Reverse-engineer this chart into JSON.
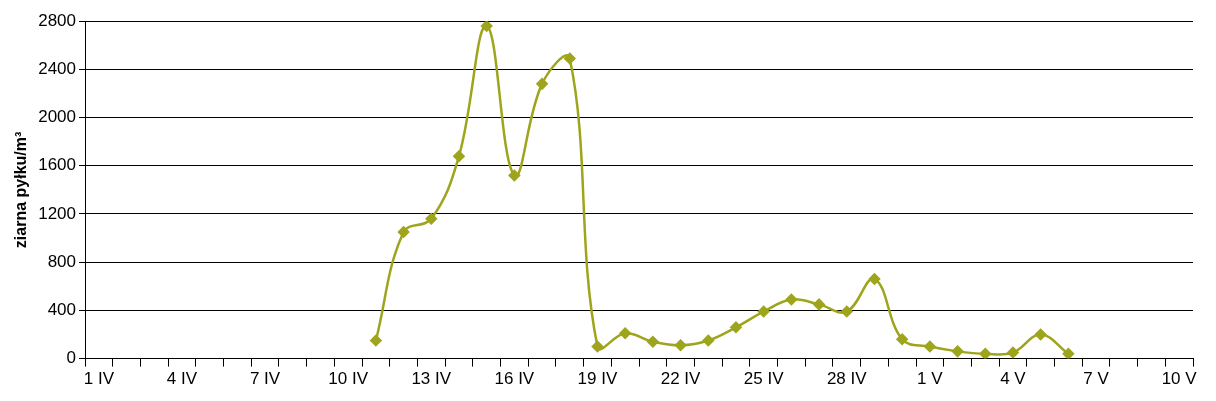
{
  "chart_data": {
    "type": "line",
    "ylabel": "ziarna pyłku/m³",
    "categories": [
      "1 IV",
      null,
      null,
      "4 IV",
      null,
      null,
      "7 IV",
      null,
      null,
      "10 IV",
      null,
      null,
      "13 IV",
      null,
      null,
      "16 IV",
      null,
      null,
      "19 IV",
      null,
      null,
      "22 IV",
      null,
      null,
      "25 IV",
      null,
      null,
      "28 IV",
      null,
      null,
      "1 V",
      null,
      null,
      "4 V",
      null,
      null,
      "7 V",
      null,
      null,
      "10 V"
    ],
    "series": [
      {
        "color": "#9ea51c",
        "values": [
          null,
          null,
          null,
          null,
          null,
          null,
          null,
          null,
          null,
          null,
          150,
          1050,
          1160,
          1680,
          2760,
          1520,
          2280,
          2490,
          100,
          210,
          140,
          110,
          150,
          260,
          390,
          490,
          450,
          390,
          660,
          160,
          100,
          60,
          40,
          50,
          200,
          40,
          null,
          null,
          null,
          null
        ]
      }
    ],
    "ylim": [
      0,
      2800
    ],
    "yticks": [
      0,
      400,
      800,
      1200,
      1600,
      2000,
      2400,
      2800
    ],
    "grid": "y",
    "legend": false,
    "marker": "diamond",
    "line_style": "solid"
  }
}
